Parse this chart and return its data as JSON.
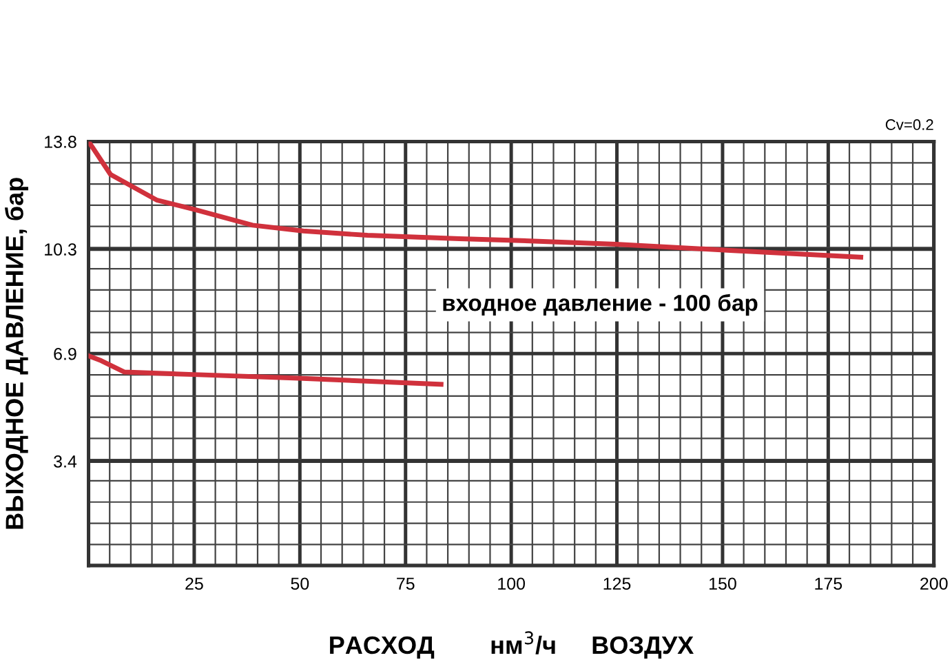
{
  "chart_data": {
    "type": "line",
    "xlabel": "РАСХОД        нм$^{3}$/ч     ВОЗДУХ",
    "ylabel": "ВЫХОДНОЕ ДАВЛЕНИЕ, бар",
    "annotations": [
      "входное давление - 100 бар",
      "Cv=0.2"
    ],
    "series": [
      {
        "color": "#d0313c",
        "x": [
          0,
          0.9,
          5.2,
          16.1,
          24.8,
          38.8,
          50.8,
          66,
          87.7,
          99.7,
          124.7,
          151.8,
          182.7
        ],
        "values": [
          13.8,
          13.62,
          12.73,
          11.9,
          11.6,
          11.08,
          10.89,
          10.75,
          10.64,
          10.59,
          10.46,
          10.26,
          10.04
        ]
      },
      {
        "color": "#d0313c",
        "x": [
          0,
          3,
          8.5,
          24.8,
          49.7,
          83.4
        ],
        "values": [
          6.83,
          6.67,
          6.3,
          6.22,
          6.1,
          5.9
        ]
      }
    ],
    "xlim": [
      0,
      200
    ],
    "xticks": [
      {
        "value": 0,
        "label": null
      },
      25,
      50,
      75,
      100,
      125,
      150,
      175,
      200
    ],
    "ylim": [
      0,
      13.8
    ],
    "yticks": [
      {
        "value": 0,
        "label": null
      },
      3.4,
      6.9,
      10.3,
      13.8
    ],
    "grid": true,
    "legend": false,
    "marker": "none",
    "line_style": "solid"
  }
}
